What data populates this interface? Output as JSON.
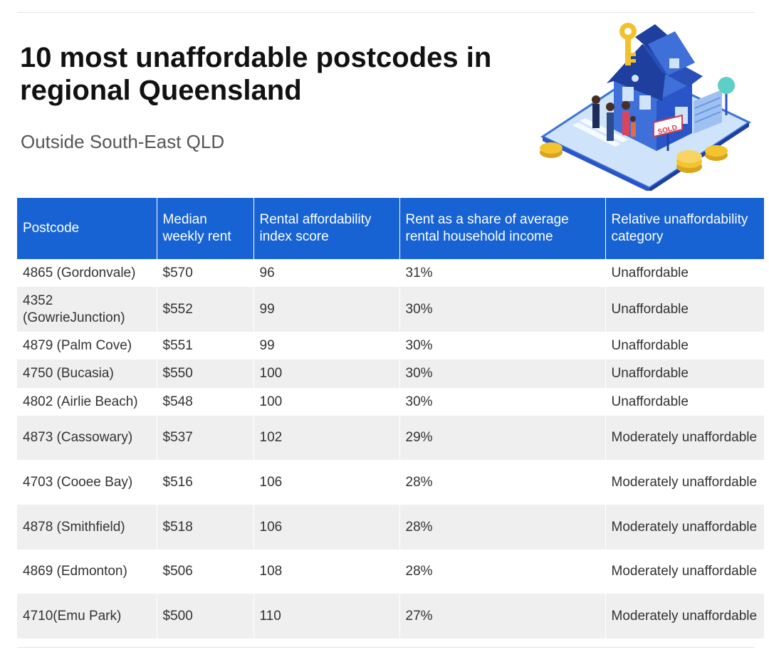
{
  "header": {
    "title": "10 most unaffordable postcodes in regional Queensland",
    "subtitle": "Outside South-East QLD"
  },
  "illustration": {
    "icon": "house-sold-icon",
    "sign_text": "SOLD",
    "colors": {
      "house": "#2a55c8",
      "roof": "#1e3f9e",
      "ground": "#cfe3fb",
      "coin": "#f4c430",
      "key": "#f2c12e"
    }
  },
  "table": {
    "header_color": "#1763d4",
    "columns": [
      "Postcode",
      "Median weekly rent",
      "Rental affordability index score",
      "Rent as a share of average rental household income",
      "Relative unaffordability category"
    ],
    "rows": [
      [
        "4865 (Gordonvale)",
        "$570",
        "96",
        "31%",
        "Unaffordable"
      ],
      [
        "4352 (GowrieJunction)",
        "$552",
        "99",
        "30%",
        "Unaffordable"
      ],
      [
        "4879 (Palm Cove)",
        "$551",
        "99",
        "30%",
        "Unaffordable"
      ],
      [
        "4750 (Bucasia)",
        "$550",
        "100",
        "30%",
        "Unaffordable"
      ],
      [
        "4802 (Airlie Beach)",
        "$548",
        "100",
        "30%",
        "Unaffordable"
      ],
      [
        "4873 (Cassowary)",
        "$537",
        "102",
        "29%",
        "Moderately unaffordable"
      ],
      [
        "4703 (Cooee Bay)",
        "$516",
        "106",
        "28%",
        "Moderately unaffordable"
      ],
      [
        "4878 (Smithfield)",
        "$518",
        "106",
        "28%",
        "Moderately unaffordable"
      ],
      [
        "4869 (Edmonton)",
        "$506",
        "108",
        "28%",
        "Moderately unaffordable"
      ],
      [
        "4710(Emu Park)",
        "$500",
        "110",
        "27%",
        "Moderately unaffordable"
      ]
    ]
  }
}
